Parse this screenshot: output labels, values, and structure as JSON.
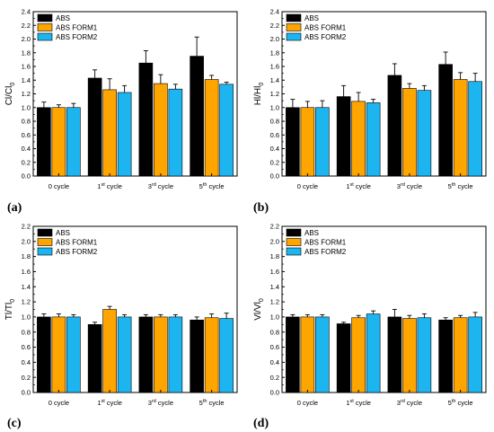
{
  "chart_data": [
    {
      "type": "bar",
      "panel_label": "(a)",
      "ylabel": {
        "main": "Cl/Cl",
        "sub": "0"
      },
      "categories": [
        {
          "main": "0 cycle",
          "sup": "",
          "rest": ""
        },
        {
          "main": "1",
          "sup": "st",
          "rest": " cycle"
        },
        {
          "main": "3",
          "sup": "rd",
          "rest": " cycle"
        },
        {
          "main": "5",
          "sup": "th",
          "rest": " cycle"
        }
      ],
      "ylim": [
        0,
        2.4
      ],
      "yticks": [
        "0.0",
        "0.2",
        "0.4",
        "0.6",
        "0.8",
        "1.0",
        "1.2",
        "1.4",
        "1.6",
        "1.8",
        "2.0",
        "2.2",
        "2.4"
      ],
      "legend_position": "top-left",
      "series": [
        {
          "name": "ABS",
          "color": "#000000",
          "values": [
            1.0,
            1.43,
            1.65,
            1.75
          ],
          "errors": [
            0.08,
            0.12,
            0.18,
            0.28
          ]
        },
        {
          "name": "ABS FORM1",
          "color": "#FFA500",
          "values": [
            1.0,
            1.26,
            1.35,
            1.41
          ],
          "errors": [
            0.04,
            0.16,
            0.13,
            0.06
          ]
        },
        {
          "name": "ABS FORM2",
          "color": "#1CB5F0",
          "values": [
            1.0,
            1.22,
            1.27,
            1.34
          ],
          "errors": [
            0.06,
            0.1,
            0.07,
            0.03
          ]
        }
      ]
    },
    {
      "type": "bar",
      "panel_label": "(b)",
      "ylabel": {
        "main": "Hl/Hl",
        "sub": "0"
      },
      "categories": [
        {
          "main": "0 cycle",
          "sup": "",
          "rest": ""
        },
        {
          "main": "1",
          "sup": "st",
          "rest": " cycle"
        },
        {
          "main": "3",
          "sup": "rd",
          "rest": " cycle"
        },
        {
          "main": "5",
          "sup": "th",
          "rest": " cycle"
        }
      ],
      "ylim": [
        0,
        2.4
      ],
      "yticks": [
        "0.0",
        "0.2",
        "0.4",
        "0.6",
        "0.8",
        "1.0",
        "1.2",
        "1.4",
        "1.6",
        "1.8",
        "2.0",
        "2.2",
        "2.4"
      ],
      "legend_position": "top-left",
      "series": [
        {
          "name": "ABS",
          "color": "#000000",
          "values": [
            1.0,
            1.16,
            1.47,
            1.63
          ],
          "errors": [
            0.12,
            0.16,
            0.17,
            0.18
          ]
        },
        {
          "name": "ABS FORM1",
          "color": "#FFA500",
          "values": [
            1.0,
            1.09,
            1.28,
            1.41
          ],
          "errors": [
            0.09,
            0.13,
            0.07,
            0.1
          ]
        },
        {
          "name": "ABS FORM2",
          "color": "#1CB5F0",
          "values": [
            1.0,
            1.07,
            1.25,
            1.38
          ],
          "errors": [
            0.1,
            0.05,
            0.07,
            0.12
          ]
        }
      ]
    },
    {
      "type": "bar",
      "panel_label": "(c)",
      "ylabel": {
        "main": "Tl/Tl",
        "sub": "0"
      },
      "categories": [
        {
          "main": "0 cycle",
          "sup": "",
          "rest": ""
        },
        {
          "main": "1",
          "sup": "st",
          "rest": " cycle"
        },
        {
          "main": "3",
          "sup": "rd",
          "rest": " cycle"
        },
        {
          "main": "5",
          "sup": "th",
          "rest": " cycle"
        }
      ],
      "ylim": [
        0,
        2.2
      ],
      "yticks": [
        "0.0",
        "0.2",
        "0.4",
        "0.6",
        "0.8",
        "1.0",
        "1.2",
        "1.4",
        "1.6",
        "1.8",
        "2.0",
        "2.2"
      ],
      "legend_position": "top-left",
      "series": [
        {
          "name": "ABS",
          "color": "#000000",
          "values": [
            1.0,
            0.9,
            1.0,
            0.96
          ],
          "errors": [
            0.04,
            0.03,
            0.03,
            0.04
          ]
        },
        {
          "name": "ABS FORM1",
          "color": "#FFA500",
          "values": [
            1.0,
            1.1,
            1.0,
            0.99
          ],
          "errors": [
            0.04,
            0.04,
            0.03,
            0.05
          ]
        },
        {
          "name": "ABS FORM2",
          "color": "#1CB5F0",
          "values": [
            1.0,
            1.0,
            1.0,
            0.98
          ],
          "errors": [
            0.03,
            0.03,
            0.03,
            0.07
          ]
        }
      ]
    },
    {
      "type": "bar",
      "panel_label": "(d)",
      "ylabel": {
        "main": "Vl/Vl",
        "sub": "0"
      },
      "categories": [
        {
          "main": "0 cycle",
          "sup": "",
          "rest": ""
        },
        {
          "main": "1",
          "sup": "st",
          "rest": " cycle"
        },
        {
          "main": "3",
          "sup": "rd",
          "rest": " cycle"
        },
        {
          "main": "5",
          "sup": "th",
          "rest": " cycle"
        }
      ],
      "ylim": [
        0,
        2.2
      ],
      "yticks": [
        "0.0",
        "0.2",
        "0.4",
        "0.6",
        "0.8",
        "1.0",
        "1.2",
        "1.4",
        "1.6",
        "1.8",
        "2.0",
        "2.2"
      ],
      "legend_position": "top-left",
      "series": [
        {
          "name": "ABS",
          "color": "#000000",
          "values": [
            1.0,
            0.91,
            1.0,
            0.96
          ],
          "errors": [
            0.03,
            0.02,
            0.1,
            0.03
          ]
        },
        {
          "name": "ABS FORM1",
          "color": "#FFA500",
          "values": [
            1.0,
            0.99,
            0.98,
            0.99
          ],
          "errors": [
            0.03,
            0.03,
            0.04,
            0.03
          ]
        },
        {
          "name": "ABS FORM2",
          "color": "#1CB5F0",
          "values": [
            1.0,
            1.04,
            0.99,
            1.0
          ],
          "errors": [
            0.03,
            0.04,
            0.05,
            0.06
          ]
        }
      ]
    }
  ]
}
